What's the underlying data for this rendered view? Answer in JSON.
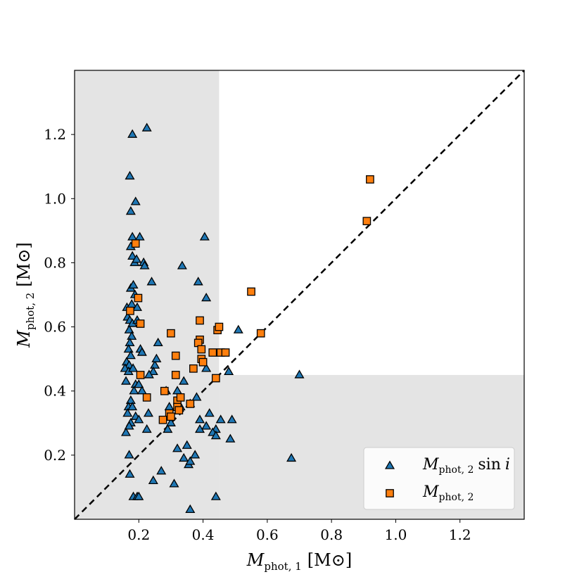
{
  "chart_data": {
    "type": "scatter",
    "xlabel": {
      "symbol": "M",
      "subscript": "phot, 1",
      "unit": "[M⊙]"
    },
    "ylabel": {
      "symbol": "M",
      "subscript": "phot, 2",
      "unit": "[M⊙]"
    },
    "xlim": [
      0.0,
      1.4
    ],
    "ylim": [
      0.0,
      1.4
    ],
    "xticks": [
      0.2,
      0.4,
      0.6,
      0.8,
      1.0,
      1.2
    ],
    "yticks": [
      0.2,
      0.4,
      0.6,
      0.8,
      1.0,
      1.2
    ],
    "tick_labels_x": [
      "0.2",
      "0.4",
      "0.6",
      "0.8",
      "1.0",
      "1.2"
    ],
    "tick_labels_y": [
      "0.2",
      "0.4",
      "0.6",
      "0.8",
      "1.0",
      "1.2"
    ],
    "shaded_regions": [
      {
        "x": [
          0.0,
          0.45
        ],
        "y": [
          0.0,
          1.4
        ],
        "color": "#e4e4e4"
      },
      {
        "x": [
          0.45,
          1.4
        ],
        "y": [
          0.0,
          0.45
        ],
        "color": "#e4e4e4"
      }
    ],
    "reference_line": {
      "kind": "one-to-one",
      "style": "dashed",
      "color": "#000000"
    },
    "legend": {
      "position": "bottom-right",
      "entries": [
        {
          "label_symbol": "M",
          "label_subscript": "phot, 2",
          "label_suffix": "sin",
          "label_var": "i",
          "marker": "triangle"
        },
        {
          "label_symbol": "M",
          "label_subscript": "phot, 2",
          "label_suffix": "",
          "label_var": "",
          "marker": "square"
        }
      ]
    },
    "series": [
      {
        "name": "M_phot,2 sin i",
        "marker": "triangle",
        "color": "#1f77b4",
        "edge_color": "#000000",
        "points": [
          [
            0.18,
            1.2
          ],
          [
            0.225,
            1.22
          ],
          [
            0.172,
            1.07
          ],
          [
            0.19,
            0.99
          ],
          [
            0.175,
            0.96
          ],
          [
            0.18,
            0.88
          ],
          [
            0.203,
            0.88
          ],
          [
            0.175,
            0.85
          ],
          [
            0.18,
            0.82
          ],
          [
            0.187,
            0.8
          ],
          [
            0.215,
            0.8
          ],
          [
            0.193,
            0.81
          ],
          [
            0.218,
            0.79
          ],
          [
            0.335,
            0.79
          ],
          [
            0.405,
            0.88
          ],
          [
            0.385,
            0.74
          ],
          [
            0.24,
            0.74
          ],
          [
            0.175,
            0.72
          ],
          [
            0.183,
            0.73
          ],
          [
            0.188,
            0.7
          ],
          [
            0.41,
            0.69
          ],
          [
            0.163,
            0.66
          ],
          [
            0.178,
            0.67
          ],
          [
            0.195,
            0.66
          ],
          [
            0.165,
            0.63
          ],
          [
            0.172,
            0.62
          ],
          [
            0.18,
            0.61
          ],
          [
            0.195,
            0.62
          ],
          [
            0.17,
            0.59
          ],
          [
            0.178,
            0.57
          ],
          [
            0.172,
            0.55
          ],
          [
            0.168,
            0.53
          ],
          [
            0.175,
            0.51
          ],
          [
            0.162,
            0.49
          ],
          [
            0.17,
            0.48
          ],
          [
            0.157,
            0.47
          ],
          [
            0.168,
            0.46
          ],
          [
            0.182,
            0.47
          ],
          [
            0.205,
            0.53
          ],
          [
            0.21,
            0.52
          ],
          [
            0.26,
            0.55
          ],
          [
            0.25,
            0.48
          ],
          [
            0.245,
            0.46
          ],
          [
            0.232,
            0.45
          ],
          [
            0.255,
            0.5
          ],
          [
            0.41,
            0.47
          ],
          [
            0.48,
            0.46
          ],
          [
            0.51,
            0.59
          ],
          [
            0.7,
            0.45
          ],
          [
            0.16,
            0.43
          ],
          [
            0.19,
            0.42
          ],
          [
            0.2,
            0.42
          ],
          [
            0.21,
            0.4
          ],
          [
            0.185,
            0.4
          ],
          [
            0.175,
            0.37
          ],
          [
            0.168,
            0.35
          ],
          [
            0.18,
            0.35
          ],
          [
            0.165,
            0.33
          ],
          [
            0.19,
            0.32
          ],
          [
            0.2,
            0.31
          ],
          [
            0.175,
            0.3
          ],
          [
            0.17,
            0.29
          ],
          [
            0.16,
            0.27
          ],
          [
            0.23,
            0.33
          ],
          [
            0.225,
            0.28
          ],
          [
            0.285,
            0.4
          ],
          [
            0.32,
            0.4
          ],
          [
            0.34,
            0.43
          ],
          [
            0.295,
            0.35
          ],
          [
            0.3,
            0.3
          ],
          [
            0.29,
            0.28
          ],
          [
            0.33,
            0.35
          ],
          [
            0.36,
            0.36
          ],
          [
            0.38,
            0.38
          ],
          [
            0.39,
            0.31
          ],
          [
            0.42,
            0.33
          ],
          [
            0.41,
            0.29
          ],
          [
            0.39,
            0.28
          ],
          [
            0.44,
            0.28
          ],
          [
            0.43,
            0.27
          ],
          [
            0.44,
            0.26
          ],
          [
            0.455,
            0.31
          ],
          [
            0.49,
            0.31
          ],
          [
            0.485,
            0.25
          ],
          [
            0.32,
            0.22
          ],
          [
            0.35,
            0.23
          ],
          [
            0.34,
            0.19
          ],
          [
            0.355,
            0.17
          ],
          [
            0.36,
            0.18
          ],
          [
            0.375,
            0.2
          ],
          [
            0.27,
            0.15
          ],
          [
            0.245,
            0.12
          ],
          [
            0.31,
            0.11
          ],
          [
            0.36,
            0.03
          ],
          [
            0.44,
            0.07
          ],
          [
            0.172,
            0.14
          ],
          [
            0.17,
            0.2
          ],
          [
            0.183,
            0.07
          ],
          [
            0.195,
            0.07
          ],
          [
            0.2,
            0.07
          ],
          [
            0.675,
            0.19
          ]
        ]
      },
      {
        "name": "M_phot,2",
        "marker": "square",
        "color": "#ff7f0e",
        "edge_color": "#000000",
        "points": [
          [
            0.92,
            1.06
          ],
          [
            0.91,
            0.93
          ],
          [
            0.19,
            0.86
          ],
          [
            0.55,
            0.71
          ],
          [
            0.198,
            0.69
          ],
          [
            0.173,
            0.65
          ],
          [
            0.205,
            0.61
          ],
          [
            0.39,
            0.62
          ],
          [
            0.3,
            0.58
          ],
          [
            0.445,
            0.59
          ],
          [
            0.45,
            0.6
          ],
          [
            0.58,
            0.58
          ],
          [
            0.39,
            0.56
          ],
          [
            0.385,
            0.55
          ],
          [
            0.395,
            0.53
          ],
          [
            0.43,
            0.52
          ],
          [
            0.455,
            0.52
          ],
          [
            0.47,
            0.52
          ],
          [
            0.395,
            0.5
          ],
          [
            0.4,
            0.49
          ],
          [
            0.315,
            0.51
          ],
          [
            0.37,
            0.47
          ],
          [
            0.205,
            0.45
          ],
          [
            0.315,
            0.45
          ],
          [
            0.44,
            0.44
          ],
          [
            0.225,
            0.38
          ],
          [
            0.28,
            0.4
          ],
          [
            0.32,
            0.37
          ],
          [
            0.33,
            0.38
          ],
          [
            0.36,
            0.36
          ],
          [
            0.32,
            0.35
          ],
          [
            0.325,
            0.34
          ],
          [
            0.295,
            0.33
          ],
          [
            0.3,
            0.32
          ],
          [
            0.275,
            0.31
          ]
        ]
      }
    ]
  }
}
